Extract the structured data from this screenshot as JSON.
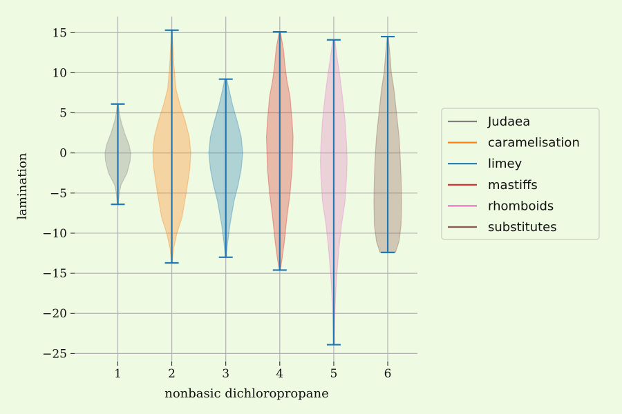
{
  "chart_data": {
    "type": "violin",
    "xlabel": "nonbasic dichloropropane",
    "ylabel": "lamination",
    "categories": [
      "1",
      "2",
      "3",
      "4",
      "5",
      "6"
    ],
    "x": [
      1,
      2,
      3,
      4,
      5,
      6
    ],
    "xlim": [
      0.2,
      6.55
    ],
    "ylim": [
      -26,
      17
    ],
    "yticks": [
      15,
      10,
      5,
      0,
      -5,
      -10,
      -15,
      -20,
      -25
    ],
    "ytick_labels": [
      "15",
      "10",
      "5",
      "0",
      "−5",
      "−10",
      "−15",
      "−20",
      "−25"
    ],
    "grid": true,
    "legend_position": "center-right",
    "series": [
      {
        "name": "Judaea",
        "x": 1,
        "min": -6.4,
        "max": 6.1,
        "color": "#7f7f7f",
        "profile": [
          [
            -6.4,
            0.01
          ],
          [
            -5.0,
            0.03
          ],
          [
            -4.0,
            0.06
          ],
          [
            -2.5,
            0.18
          ],
          [
            -1.0,
            0.24
          ],
          [
            0.0,
            0.25
          ],
          [
            1.0,
            0.22
          ],
          [
            2.5,
            0.13
          ],
          [
            4.0,
            0.06
          ],
          [
            5.0,
            0.03
          ],
          [
            6.1,
            0.01
          ]
        ]
      },
      {
        "name": "caramelisation",
        "x": 2,
        "min": -13.7,
        "max": 15.3,
        "color": "#ff7f0e",
        "profile": [
          [
            -13.7,
            0.01
          ],
          [
            -12.0,
            0.03
          ],
          [
            -10.0,
            0.1
          ],
          [
            -8.0,
            0.2
          ],
          [
            -5.0,
            0.28
          ],
          [
            -2.0,
            0.35
          ],
          [
            0.0,
            0.37
          ],
          [
            2.0,
            0.34
          ],
          [
            4.0,
            0.26
          ],
          [
            6.0,
            0.16
          ],
          [
            8.0,
            0.08
          ],
          [
            11.0,
            0.04
          ],
          [
            13.5,
            0.02
          ],
          [
            15.3,
            0.01
          ]
        ]
      },
      {
        "name": "limey",
        "x": 3,
        "min": -13.0,
        "max": 9.2,
        "color": "#1f77b4",
        "profile": [
          [
            -13.0,
            0.01
          ],
          [
            -11.5,
            0.03
          ],
          [
            -9.0,
            0.08
          ],
          [
            -6.0,
            0.16
          ],
          [
            -4.0,
            0.24
          ],
          [
            -2.0,
            0.3
          ],
          [
            0.0,
            0.33
          ],
          [
            2.0,
            0.3
          ],
          [
            4.0,
            0.22
          ],
          [
            6.0,
            0.13
          ],
          [
            8.0,
            0.06
          ],
          [
            9.2,
            0.02
          ]
        ]
      },
      {
        "name": "mastiffs",
        "x": 4,
        "min": -14.6,
        "max": 15.1,
        "color": "#d62728",
        "profile": [
          [
            -14.6,
            0.01
          ],
          [
            -13.0,
            0.05
          ],
          [
            -11.0,
            0.09
          ],
          [
            -8.0,
            0.14
          ],
          [
            -5.0,
            0.2
          ],
          [
            -2.0,
            0.24
          ],
          [
            0.0,
            0.25
          ],
          [
            2.0,
            0.26
          ],
          [
            4.0,
            0.24
          ],
          [
            7.0,
            0.2
          ],
          [
            9.0,
            0.14
          ],
          [
            11.0,
            0.1
          ],
          [
            13.0,
            0.07
          ],
          [
            15.1,
            0.01
          ]
        ]
      },
      {
        "name": "rhomboids",
        "x": 5,
        "min": -23.9,
        "max": 14.1,
        "color": "#e377c2",
        "profile": [
          [
            -23.9,
            0.01
          ],
          [
            -20.0,
            0.02
          ],
          [
            -16.0,
            0.05
          ],
          [
            -12.0,
            0.1
          ],
          [
            -9.0,
            0.15
          ],
          [
            -6.0,
            0.22
          ],
          [
            -3.0,
            0.25
          ],
          [
            -1.0,
            0.26
          ],
          [
            1.0,
            0.25
          ],
          [
            4.0,
            0.22
          ],
          [
            7.0,
            0.17
          ],
          [
            10.0,
            0.11
          ],
          [
            12.5,
            0.05
          ],
          [
            14.1,
            0.02
          ]
        ]
      },
      {
        "name": "substitutes",
        "x": 6,
        "min": -12.4,
        "max": 14.5,
        "color": "#8c564b",
        "profile": [
          [
            -12.4,
            0.15
          ],
          [
            -11.0,
            0.22
          ],
          [
            -9.0,
            0.26
          ],
          [
            -6.0,
            0.27
          ],
          [
            -3.0,
            0.26
          ],
          [
            0.0,
            0.24
          ],
          [
            2.0,
            0.22
          ],
          [
            5.0,
            0.17
          ],
          [
            8.0,
            0.12
          ],
          [
            10.0,
            0.07
          ],
          [
            12.5,
            0.04
          ],
          [
            14.5,
            0.01
          ]
        ]
      }
    ],
    "whisker_color": "#1f77b4"
  }
}
